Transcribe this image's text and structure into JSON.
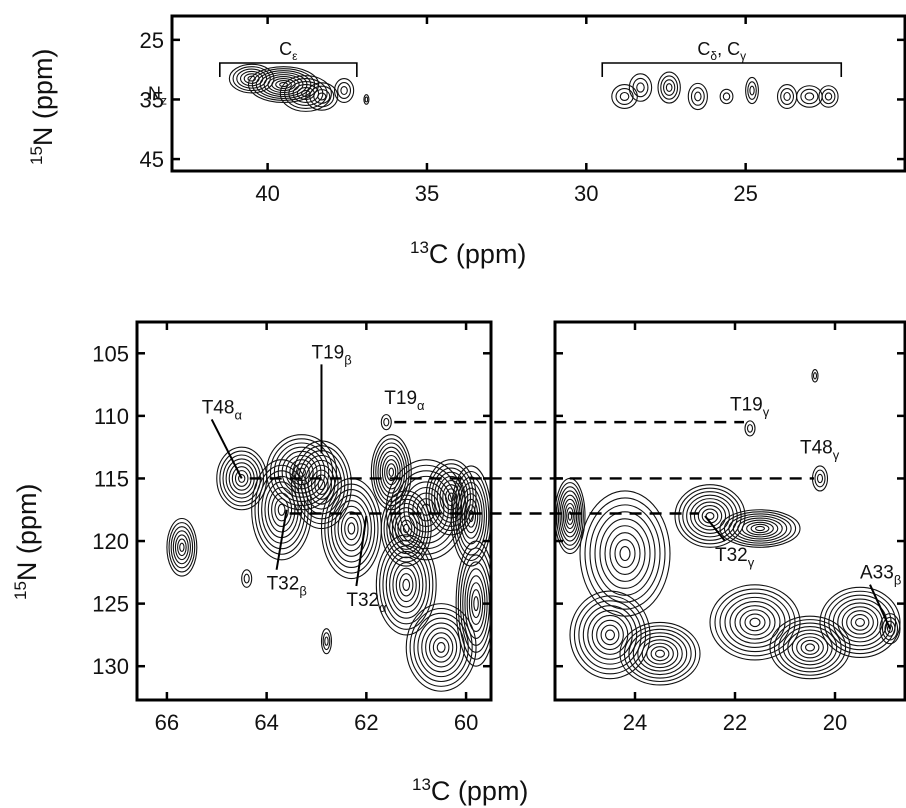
{
  "chart_data": [
    {
      "type": "contour",
      "panel": "top",
      "xlabel": "13C (ppm)",
      "ylabel": "15N (ppm)",
      "x_ticks": [
        40,
        35,
        30,
        25
      ],
      "y_ticks": [
        25,
        35,
        45
      ],
      "xlim": [
        43,
        20
      ],
      "ylim": [
        21,
        47
      ],
      "annotations": [
        {
          "text": "Cε",
          "x_range": [
            41.5,
            37.2
          ]
        },
        {
          "text": "Cδ, Cγ",
          "x_range": [
            29.5,
            22
          ]
        },
        {
          "text": "Nz"
        }
      ],
      "peaks": [
        {
          "x": 40.5,
          "y": 31.5,
          "rx": 0.7,
          "ry": 2.4
        },
        {
          "x": 39.5,
          "y": 32.5,
          "rx": 1.1,
          "ry": 3.0
        },
        {
          "x": 38.8,
          "y": 34.0,
          "rx": 0.8,
          "ry": 3.0
        },
        {
          "x": 38.3,
          "y": 34.5,
          "rx": 0.5,
          "ry": 2.3
        },
        {
          "x": 37.6,
          "y": 33.5,
          "rx": 0.3,
          "ry": 2.0
        },
        {
          "x": 36.9,
          "y": 35.0,
          "rx": 0.05,
          "ry": 0.8
        },
        {
          "x": 28.8,
          "y": 34.5,
          "rx": 0.4,
          "ry": 2.0
        },
        {
          "x": 28.3,
          "y": 33.0,
          "rx": 0.35,
          "ry": 2.3
        },
        {
          "x": 27.4,
          "y": 33.0,
          "rx": 0.35,
          "ry": 2.6
        },
        {
          "x": 26.5,
          "y": 34.5,
          "rx": 0.3,
          "ry": 2.2
        },
        {
          "x": 25.6,
          "y": 34.5,
          "rx": 0.2,
          "ry": 1.2
        },
        {
          "x": 24.8,
          "y": 33.5,
          "rx": 0.2,
          "ry": 2.2
        },
        {
          "x": 23.7,
          "y": 34.5,
          "rx": 0.3,
          "ry": 2.0
        },
        {
          "x": 23.0,
          "y": 34.5,
          "rx": 0.4,
          "ry": 1.8
        },
        {
          "x": 22.4,
          "y": 34.5,
          "rx": 0.3,
          "ry": 1.8
        }
      ]
    },
    {
      "type": "contour",
      "panel": "bottom-left",
      "xlabel": "13C (ppm)",
      "ylabel": "15N (ppm)",
      "x_ticks": [
        66,
        64,
        62,
        60
      ],
      "y_ticks": [
        105,
        110,
        115,
        120,
        125,
        130
      ],
      "xlim": [
        66.6,
        59.5
      ],
      "ylim": [
        102.5,
        132.7
      ],
      "peaks": [
        {
          "x": 65.7,
          "y": 120.5,
          "rx": 0.3,
          "ry": 2.3
        },
        {
          "x": 64.5,
          "y": 115.0,
          "rx": 0.5,
          "ry": 2.5
        },
        {
          "x": 63.7,
          "y": 117.5,
          "rx": 0.6,
          "ry": 4.0
        },
        {
          "x": 63.3,
          "y": 114.5,
          "rx": 0.7,
          "ry": 3.0
        },
        {
          "x": 62.9,
          "y": 115.5,
          "rx": 0.6,
          "ry": 3.5
        },
        {
          "x": 62.3,
          "y": 119.0,
          "rx": 0.6,
          "ry": 4.0
        },
        {
          "x": 61.5,
          "y": 114.5,
          "rx": 0.4,
          "ry": 3.0
        },
        {
          "x": 61.2,
          "y": 119.0,
          "rx": 0.5,
          "ry": 3.0
        },
        {
          "x": 60.8,
          "y": 117.5,
          "rx": 0.8,
          "ry": 4.0
        },
        {
          "x": 60.3,
          "y": 116.5,
          "rx": 0.5,
          "ry": 3.0
        },
        {
          "x": 59.9,
          "y": 118.0,
          "rx": 0.4,
          "ry": 4.0
        },
        {
          "x": 61.2,
          "y": 123.5,
          "rx": 0.6,
          "ry": 4.0
        },
        {
          "x": 60.5,
          "y": 128.5,
          "rx": 0.7,
          "ry": 3.5
        },
        {
          "x": 59.8,
          "y": 125.0,
          "rx": 0.4,
          "ry": 5.0
        },
        {
          "x": 64.4,
          "y": 123.0,
          "rx": 0.1,
          "ry": 0.7
        },
        {
          "x": 62.8,
          "y": 128.0,
          "rx": 0.1,
          "ry": 1.0
        },
        {
          "x": 61.6,
          "y": 110.5,
          "rx": 0.1,
          "ry": 0.6
        }
      ],
      "labels": [
        {
          "text": "T48",
          "sub": "α",
          "x": 64.5,
          "y": 115.0
        },
        {
          "text": "T19",
          "sub": "β",
          "x": 62.9,
          "y": 113.0
        },
        {
          "text": "T19",
          "sub": "α",
          "x": 61.6,
          "y": 110.5
        },
        {
          "text": "T32",
          "sub": "β",
          "x": 63.6,
          "y": 117.5
        },
        {
          "text": "T32",
          "sub": "α",
          "x": 62.0,
          "y": 118.0
        }
      ]
    },
    {
      "type": "contour",
      "panel": "bottom-right",
      "xlabel": "13C (ppm)",
      "ylabel": "15N (ppm)",
      "x_ticks": [
        24,
        22,
        20
      ],
      "y_ticks": [
        105,
        110,
        115,
        120,
        125,
        130
      ],
      "xlim": [
        25.6,
        18.6
      ],
      "ylim": [
        102.5,
        132.7
      ],
      "peaks": [
        {
          "x": 25.3,
          "y": 118.0,
          "rx": 0.3,
          "ry": 3.0
        },
        {
          "x": 24.2,
          "y": 121.0,
          "rx": 0.9,
          "ry": 5.0
        },
        {
          "x": 24.5,
          "y": 127.5,
          "rx": 0.8,
          "ry": 3.5
        },
        {
          "x": 23.5,
          "y": 129.0,
          "rx": 0.8,
          "ry": 2.5
        },
        {
          "x": 22.5,
          "y": 118.0,
          "rx": 0.7,
          "ry": 2.5
        },
        {
          "x": 21.5,
          "y": 119.0,
          "rx": 0.8,
          "ry": 1.5
        },
        {
          "x": 21.6,
          "y": 126.5,
          "rx": 0.9,
          "ry": 3.0
        },
        {
          "x": 20.5,
          "y": 128.5,
          "rx": 0.8,
          "ry": 2.5
        },
        {
          "x": 19.5,
          "y": 126.5,
          "rx": 0.8,
          "ry": 2.8
        },
        {
          "x": 18.9,
          "y": 127.0,
          "rx": 0.2,
          "ry": 1.2
        },
        {
          "x": 20.4,
          "y": 106.8,
          "rx": 0.06,
          "ry": 0.5
        },
        {
          "x": 21.7,
          "y": 111.0,
          "rx": 0.1,
          "ry": 0.6
        },
        {
          "x": 20.3,
          "y": 115.0,
          "rx": 0.15,
          "ry": 1.0
        }
      ],
      "labels": [
        {
          "text": "T19",
          "sub": "γ",
          "x": 21.7,
          "y": 111.0
        },
        {
          "text": "T48",
          "sub": "γ",
          "x": 20.3,
          "y": 115.0
        },
        {
          "text": "T32",
          "sub": "γ",
          "x": 22.6,
          "y": 118.0
        },
        {
          "text": "A33",
          "sub": "β",
          "x": 18.9,
          "y": 127.0
        }
      ],
      "dashed_lines_y": [
        110.5,
        115.0,
        117.8
      ]
    }
  ],
  "axis_titles": {
    "top_x_sup": "13",
    "top_x": "C  (ppm)",
    "top_y_sup": "15",
    "top_y": "N  (ppm)",
    "bottom_x_sup": "13",
    "bottom_x": "C  (ppm)",
    "bottom_y_sup": "15",
    "bottom_y": "N  (ppm)"
  }
}
